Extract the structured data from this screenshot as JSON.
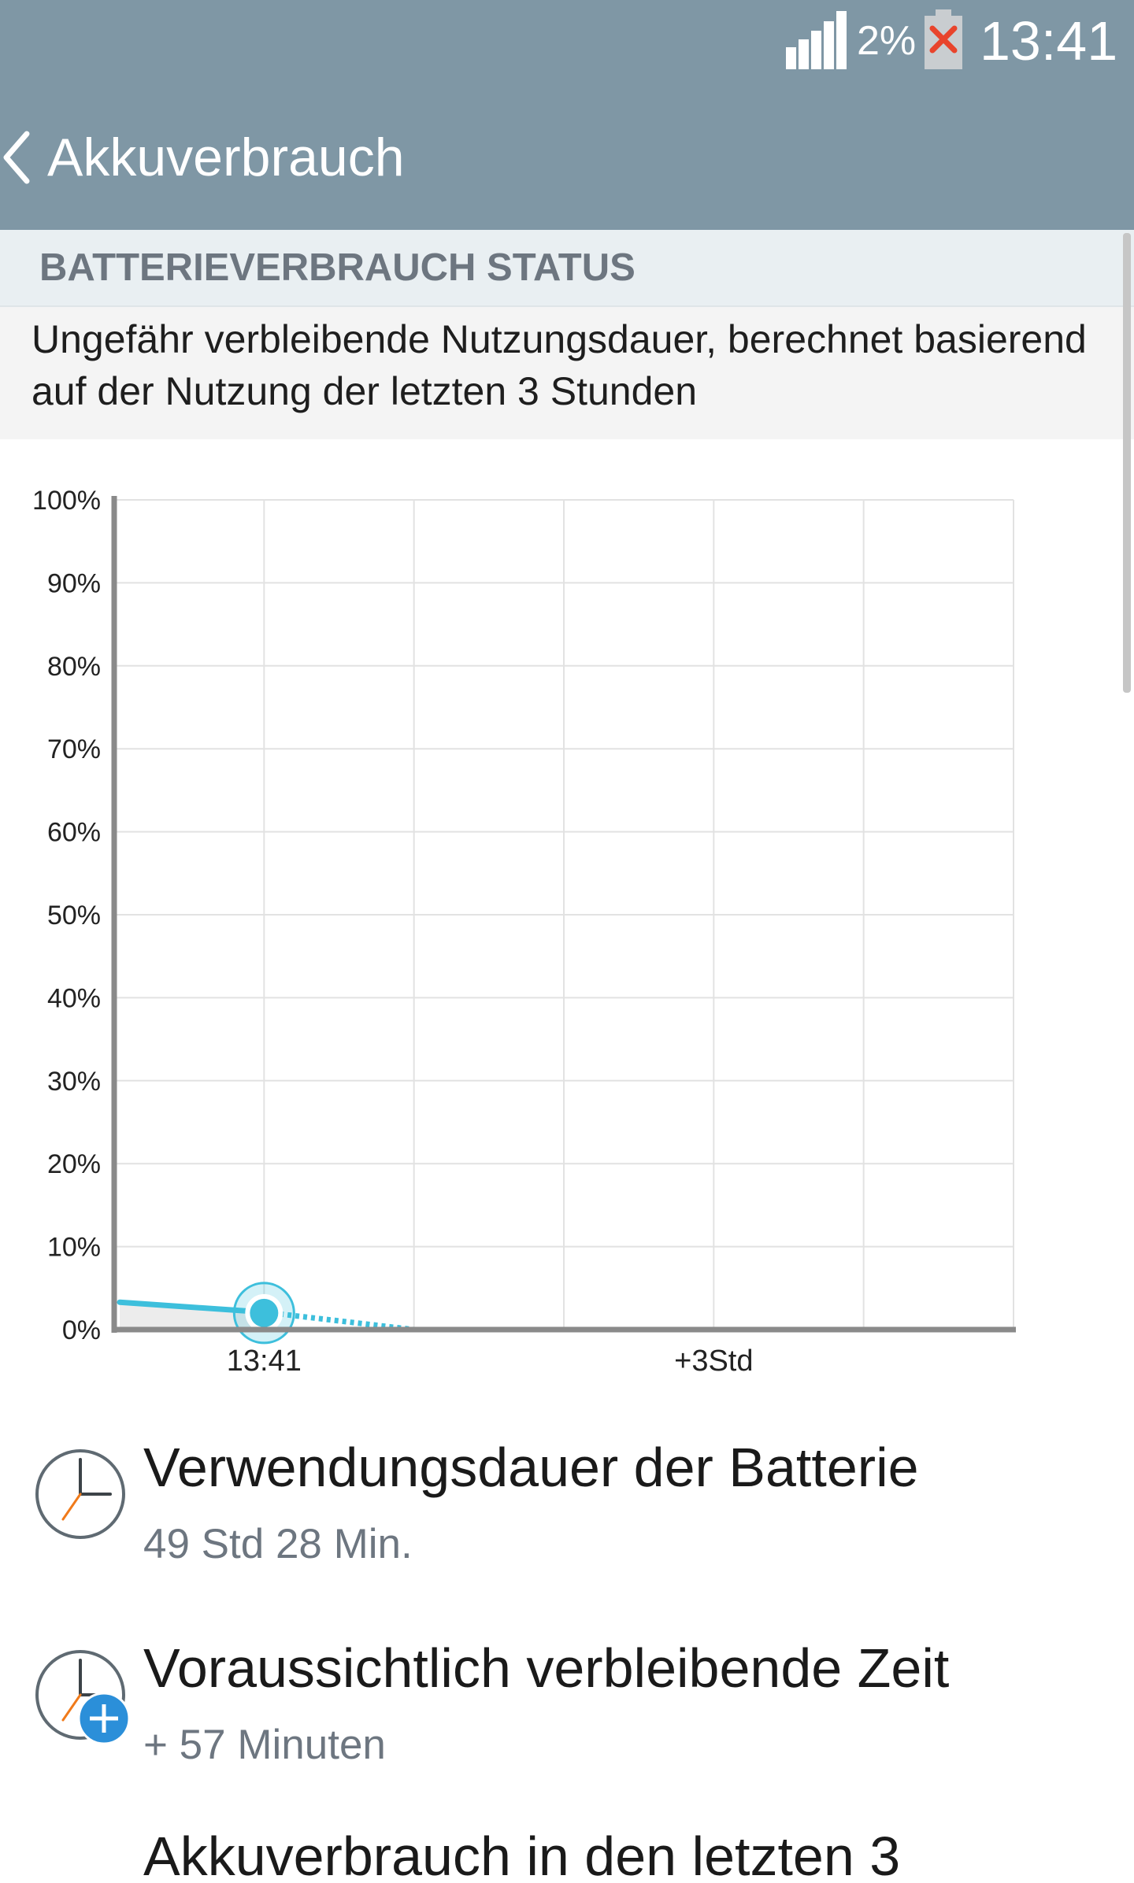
{
  "status_bar": {
    "battery_percent": "2%",
    "time": "13:41",
    "battery_status_icon": "battery-not-charging-icon",
    "signal_icon": "signal-bars-icon"
  },
  "action_bar": {
    "title": "Akkuverbrauch",
    "back_icon": "chevron-left-icon"
  },
  "section": {
    "title": "BATTERIEVERBRAUCH STATUS",
    "description": "Ungefähr verbleibende Nutzungsdauer, berechnet basierend auf der Nutzung der letzten 3 Stunden"
  },
  "chart_data": {
    "type": "line",
    "y_tick_labels": [
      "100%",
      "90%",
      "80%",
      "70%",
      "60%",
      "50%",
      "40%",
      "30%",
      "20%",
      "10%",
      "0%"
    ],
    "x_tick_labels": [
      "13:41",
      "+3Std"
    ],
    "ylim": [
      0,
      100
    ],
    "history": {
      "values": [
        3.3,
        2.1
      ]
    },
    "current": {
      "time": "13:41",
      "value": 2
    },
    "prediction": {
      "values": [
        2.1,
        0
      ]
    },
    "colors": {
      "line": "#3dbfdc",
      "fill": "#ececec",
      "axis": "#8a8a8a",
      "grid": "#e2e2e2"
    },
    "grid": true
  },
  "items": [
    {
      "title": "Verwendungsdauer der Batterie",
      "value": "49 Std 28 Min.",
      "icon": "clock-icon"
    },
    {
      "title": "Voraussichtlich verbleibende Zeit",
      "value": "+ 57 Minuten",
      "icon": "clock-plus-icon"
    },
    {
      "title": "Akkuverbrauch in den letzten 3",
      "value": "",
      "icon": ""
    }
  ]
}
